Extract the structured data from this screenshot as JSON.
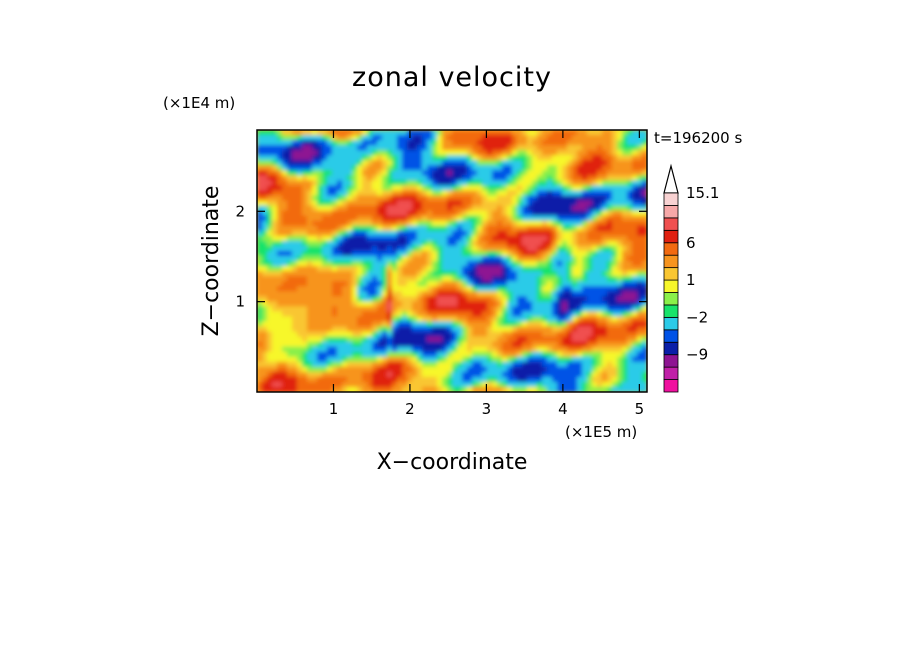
{
  "chart_data": {
    "type": "heatmap",
    "title": "zonal velocity",
    "xlabel": "X−coordinate",
    "ylabel": "Z−coordinate",
    "x_scale_label": "(×1E5 m)",
    "y_scale_label": "(×1E4 m)",
    "time_label": "t=196200 s",
    "xlim": [
      0,
      5.1
    ],
    "ylim": [
      0,
      2.9
    ],
    "x_ticks": [
      1,
      2,
      3,
      4,
      5
    ],
    "y_ticks": [
      1,
      2
    ],
    "x_tick_labels": [
      "1",
      "2",
      "3",
      "4",
      "5"
    ],
    "y_tick_labels": [
      "1",
      "2"
    ],
    "colorbar": {
      "levels": [
        -15,
        -12,
        -9,
        -6,
        -4,
        -2,
        -1,
        0,
        1,
        2,
        4,
        6,
        9,
        12,
        15.1
      ],
      "labeled_values": [
        15.1,
        6,
        1,
        -2,
        -9
      ],
      "labels": [
        "15.1",
        "6",
        "1",
        "−2",
        "−9"
      ],
      "colors": [
        "#f0119f",
        "#c020a8",
        "#8e1492",
        "#0a1fa8",
        "#0052e6",
        "#2bcbe8",
        "#18e36a",
        "#8af04a",
        "#f7f72a",
        "#f9c632",
        "#f7941e",
        "#f26a10",
        "#e02010",
        "#f05050",
        "#f7a8a8",
        "#f8d2d2"
      ],
      "extend": "max"
    },
    "grid": false
  }
}
